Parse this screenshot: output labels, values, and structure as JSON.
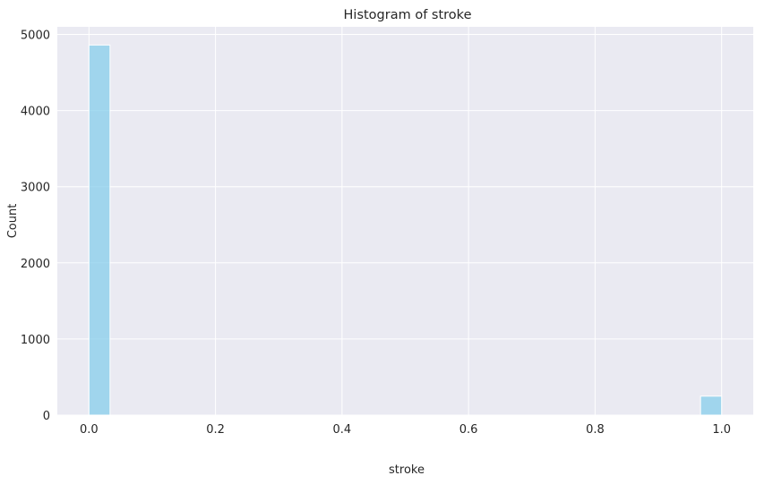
{
  "chart_data": {
    "type": "bar",
    "title": "Histogram of stroke",
    "xlabel": "stroke",
    "ylabel": "Count",
    "xlim": [
      -0.05,
      1.05
    ],
    "ylim": [
      0,
      5100
    ],
    "xticks": [
      "0.0",
      "0.2",
      "0.4",
      "0.6",
      "0.8",
      "1.0"
    ],
    "yticks": [
      "0",
      "1000",
      "2000",
      "3000",
      "4000",
      "5000"
    ],
    "bins": [
      {
        "x0": 0.0,
        "x1": 0.0333,
        "count": 4861
      },
      {
        "x0": 0.9667,
        "x1": 1.0,
        "count": 249
      }
    ],
    "grid": true,
    "colors": {
      "bar_fill": "#87CEEB",
      "bar_edge": "#ffffff",
      "plot_bg": "#EAEAF2",
      "grid": "#ffffff"
    }
  }
}
